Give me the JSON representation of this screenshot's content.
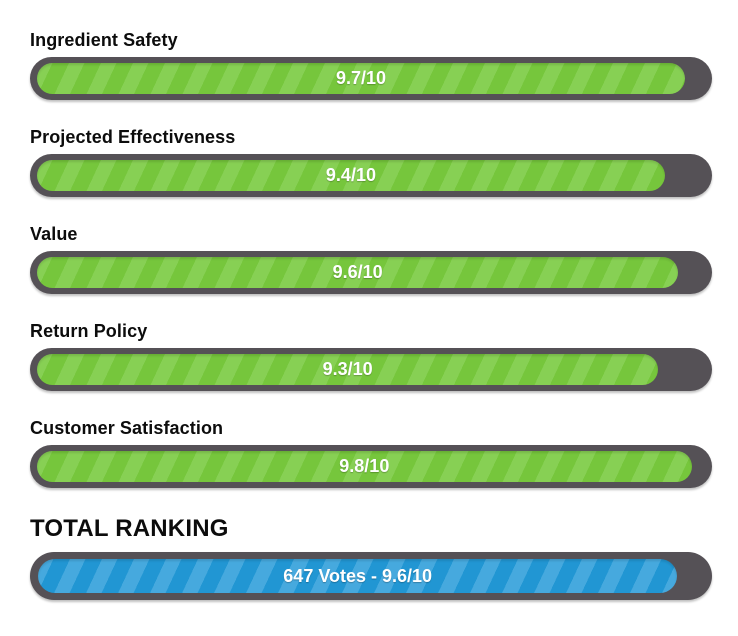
{
  "colors": {
    "track": "#555156",
    "green_base": "#76C63C",
    "green_stripe": "#87D054",
    "blue_base": "#2196D3",
    "blue_stripe": "#46A9DE",
    "bar_text": "#FFFFFF",
    "label_text": "#0C0C0C"
  },
  "ratings": [
    {
      "label": "Ingredient Safety",
      "score_text": "9.7/10",
      "percent": 97
    },
    {
      "label": "Projected Effectiveness",
      "score_text": "9.4/10",
      "percent": 94
    },
    {
      "label": "Value",
      "score_text": "9.6/10",
      "percent": 96
    },
    {
      "label": "Return Policy",
      "score_text": "9.3/10",
      "percent": 93
    },
    {
      "label": "Customer Satisfaction",
      "score_text": "9.8/10",
      "percent": 98
    }
  ],
  "total": {
    "label": "TOTAL RANKING",
    "score_text": "647 Votes - 9.6/10",
    "percent": 96
  },
  "chart_data": {
    "type": "bar",
    "orientation": "horizontal",
    "categories": [
      "Ingredient Safety",
      "Projected Effectiveness",
      "Value",
      "Return Policy",
      "Customer Satisfaction"
    ],
    "values": [
      9.7,
      9.4,
      9.6,
      9.3,
      9.8
    ],
    "value_labels": [
      "9.7/10",
      "9.4/10",
      "9.6/10",
      "9.3/10",
      "9.8/10"
    ],
    "scale_min": 0,
    "scale_max": 10,
    "total": {
      "label": "TOTAL RANKING",
      "votes": 647,
      "value": 9.6,
      "value_label": "647 Votes - 9.6/10"
    },
    "bar_color": "#76C63C",
    "total_bar_color": "#2196D3",
    "track_color": "#555156",
    "legend": "none",
    "grid": "off"
  }
}
